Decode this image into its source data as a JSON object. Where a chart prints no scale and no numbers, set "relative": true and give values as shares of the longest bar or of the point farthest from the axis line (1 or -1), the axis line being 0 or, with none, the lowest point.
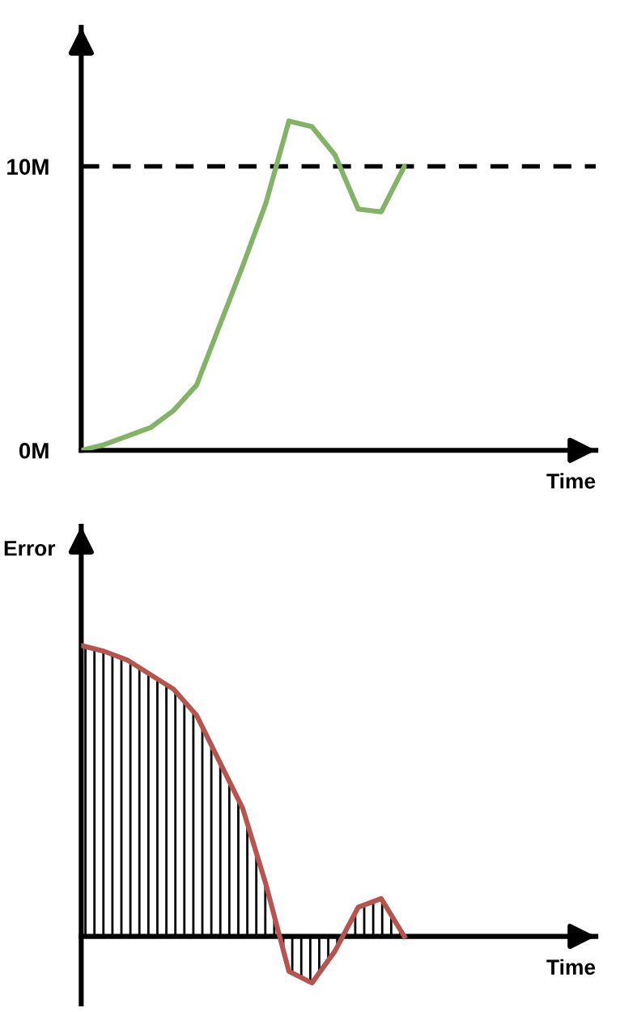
{
  "chart_data": [
    {
      "type": "line",
      "xlabel": "Time",
      "categories": [
        null,
        null,
        null,
        null,
        null,
        null,
        null,
        null,
        null,
        null,
        null,
        null,
        null,
        null,
        null,
        null,
        null,
        null,
        null,
        null,
        null,
        null,
        null
      ],
      "series": [
        {
          "color": "#82b366",
          "values": [
            0,
            0.2,
            0.5,
            0.8,
            1.4,
            2.3,
            4.4,
            6.5,
            8.7,
            11.6,
            11.4,
            10.4,
            8.5,
            8.4,
            10.0,
            null,
            null,
            null,
            null,
            null,
            null,
            null,
            null
          ]
        }
      ],
      "ylim": [
        0,
        14.9
      ],
      "yticks": [
        {
          "value": 0,
          "label": "0M"
        },
        {
          "value": 10,
          "label": "10M"
        }
      ],
      "ref_lines": [
        {
          "axis": "y",
          "value": 10,
          "color": "#000000",
          "line_style": "dashed"
        }
      ],
      "tick_labels": "y",
      "grid": false,
      "legend": false
    },
    {
      "type": "area",
      "xlabel": "Time",
      "ylabel": "Error",
      "relative": true,
      "categories": [
        null,
        null,
        null,
        null,
        null,
        null,
        null,
        null,
        null,
        null,
        null,
        null,
        null,
        null,
        null,
        null,
        null,
        null,
        null,
        null,
        null,
        null,
        null
      ],
      "series": [
        {
          "color": "#b85450",
          "values": [
            1.0,
            0.98,
            0.95,
            0.9,
            0.85,
            0.76,
            0.6,
            0.44,
            0.18,
            -0.12,
            -0.16,
            -0.05,
            0.1,
            0.13,
            0,
            null,
            null,
            null,
            null,
            null,
            null,
            null,
            null
          ]
        }
      ],
      "tick_labels": false,
      "grid": false,
      "legend": false
    }
  ]
}
